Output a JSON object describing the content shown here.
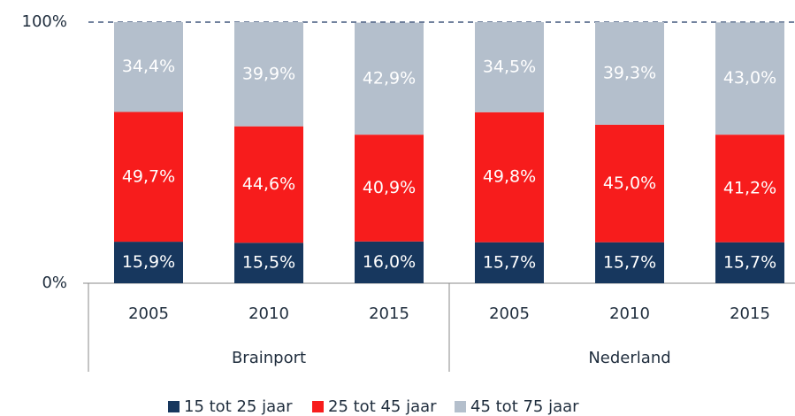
{
  "chart_data": {
    "type": "stacked_bar",
    "categories": [
      "2005",
      "2010",
      "2015",
      "2005",
      "2010",
      "2015"
    ],
    "groups": [
      "Brainport",
      "Nederland"
    ],
    "series": [
      {
        "name": "15 tot 25 jaar",
        "color": "#17375e",
        "values": [
          15.9,
          15.5,
          16.0,
          15.7,
          15.7,
          15.7
        ],
        "value_labels": [
          "15,9%",
          "15,5%",
          "16,0%",
          "15,7%",
          "15,7%",
          "15,7%"
        ]
      },
      {
        "name": "25 tot 45 jaar",
        "color": "#f71c1c",
        "values": [
          49.7,
          44.6,
          40.9,
          49.8,
          45.0,
          41.2
        ],
        "value_labels": [
          "49,7%",
          "44,6%",
          "40,9%",
          "49,8%",
          "45,0%",
          "41,2%"
        ]
      },
      {
        "name": "45 tot 75 jaar",
        "color": "#b4bfcc",
        "values": [
          34.4,
          39.9,
          42.9,
          34.5,
          39.3,
          43.0
        ],
        "value_labels": [
          "34,4%",
          "39,9%",
          "42,9%",
          "34,5%",
          "39,3%",
          "43,0%"
        ]
      }
    ],
    "ylim": [
      0,
      100
    ],
    "yticks": [
      {
        "value": 0,
        "label": "0%"
      },
      {
        "value": 100,
        "label": "100%"
      }
    ],
    "legend": "bottom"
  }
}
